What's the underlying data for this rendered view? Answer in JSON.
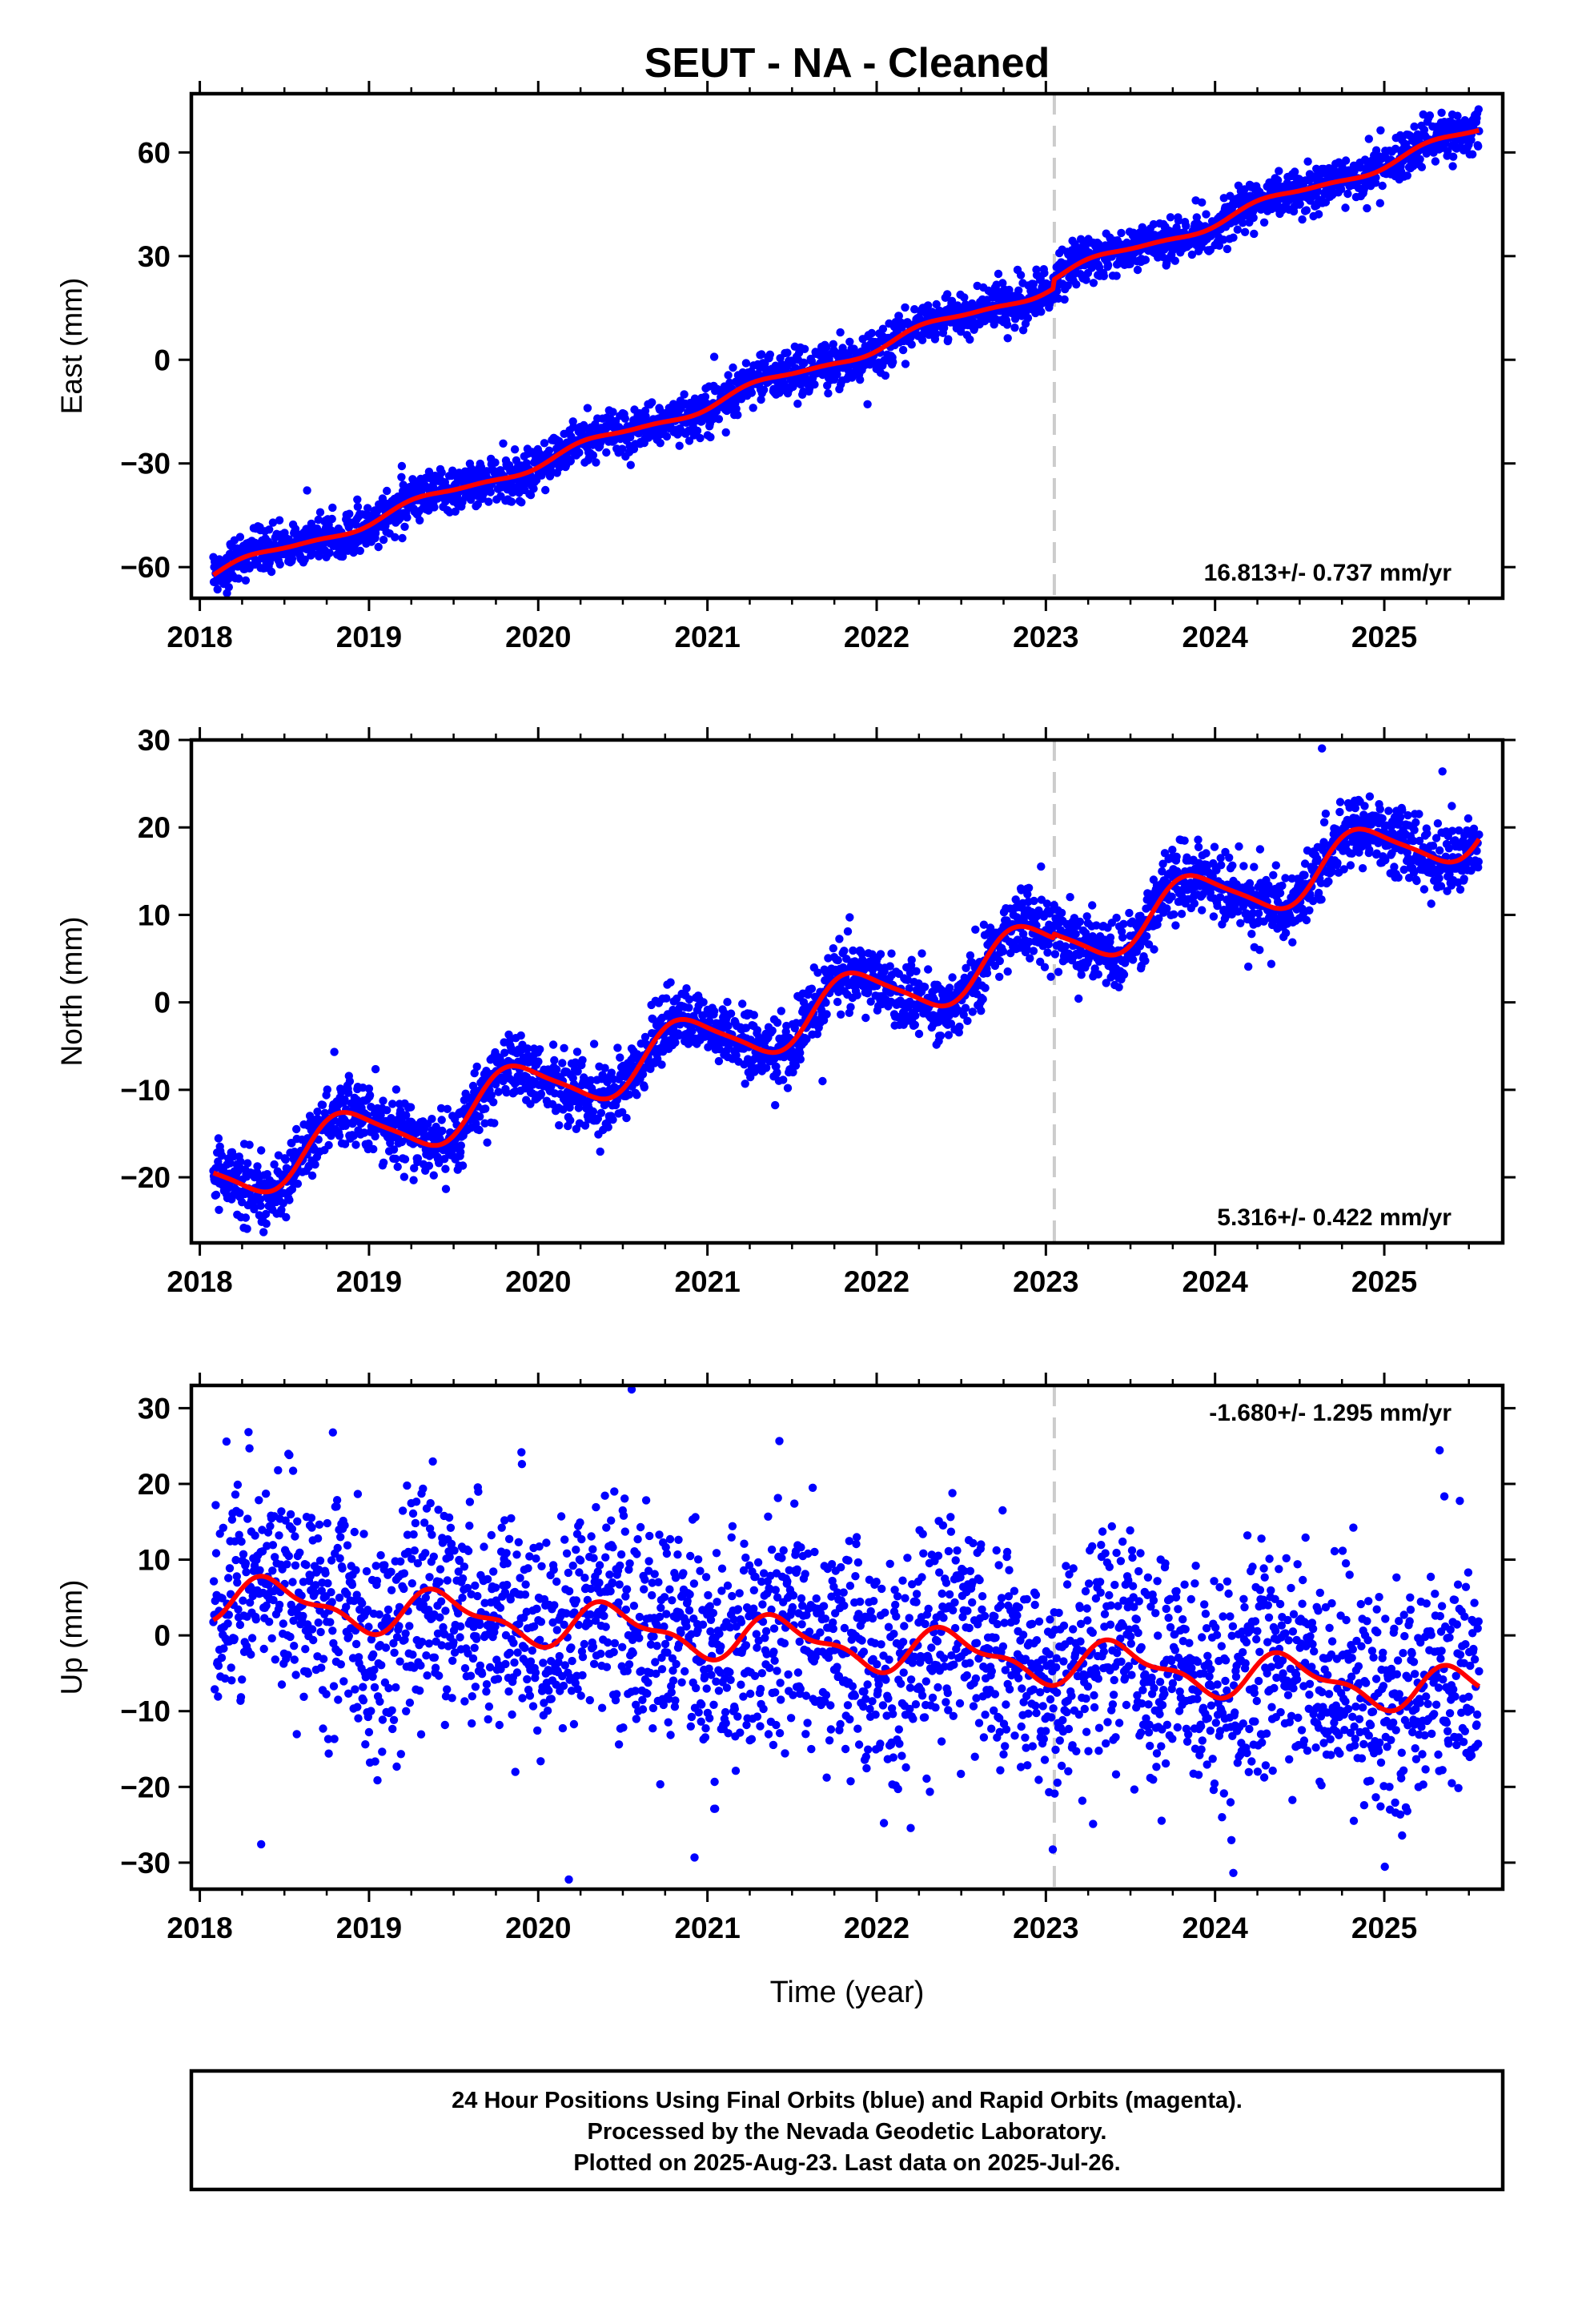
{
  "title": "SEUT  - NA - Cleaned",
  "colors": {
    "final_orbits": "#0000ff",
    "model_fit": "#ff0000",
    "reference_line": "#cccccc",
    "axes": "#000000"
  },
  "chart_data": [
    {
      "type": "scatter",
      "component": "east",
      "ylabel": "East (mm)",
      "xlabel": "",
      "xlim": [
        2017.95,
        2025.7
      ],
      "ylim": [
        -69,
        77
      ],
      "yticks": [
        -60,
        -30,
        0,
        30,
        60
      ],
      "xticks": [
        2018,
        2019,
        2020,
        2021,
        2022,
        2023,
        2024,
        2025
      ],
      "rate_text": "16.813+/- 0.737 mm/yr",
      "rate_position": "bottom-right",
      "reference_epoch": 2023.05,
      "trend": {
        "t0": 2018.08,
        "y0": -62.0,
        "rate": 16.813,
        "annual_amp": 1.6,
        "annual_phase": 0.1,
        "semiannual_amp": 0.5,
        "offsets": [
          [
            2023.05,
            2.5
          ]
        ]
      },
      "scatter_sigma": 3.2,
      "series": [
        {
          "name": "24 Hour Positions Using Final Orbits",
          "style": "scatter",
          "color": "#0000ff"
        },
        {
          "name": "model fit",
          "style": "line",
          "color": "#ff0000"
        }
      ]
    },
    {
      "type": "scatter",
      "component": "north",
      "ylabel": "North (mm)",
      "xlabel": "",
      "xlim": [
        2017.95,
        2025.7
      ],
      "ylim": [
        -27.5,
        30
      ],
      "yticks": [
        -20,
        -10,
        0,
        10,
        20,
        30
      ],
      "xticks": [
        2018,
        2019,
        2020,
        2021,
        2022,
        2023,
        2024,
        2025
      ],
      "rate_text": "5.316+/- 0.422 mm/yr",
      "rate_position": "bottom-right",
      "reference_epoch": 2023.05,
      "trend": {
        "t0": 2018.08,
        "y0": -20.0,
        "rate": 5.316,
        "annual_amp": 3.2,
        "annual_phase": 0.62,
        "semiannual_amp": 0.6,
        "offsets": [
          [
            2023.05,
            0.5
          ]
        ]
      },
      "scatter_sigma": 2.0,
      "series": [
        {
          "name": "24 Hour Positions Using Final Orbits",
          "style": "scatter",
          "color": "#0000ff"
        },
        {
          "name": "model fit",
          "style": "line",
          "color": "#ff0000"
        }
      ]
    },
    {
      "type": "scatter",
      "component": "up",
      "ylabel": "Up (mm)",
      "xlabel": "Time (year)",
      "xlim": [
        2017.95,
        2025.7
      ],
      "ylim": [
        -33.5,
        33
      ],
      "yticks": [
        -30,
        -20,
        -10,
        0,
        10,
        20,
        30
      ],
      "xticks": [
        2018,
        2019,
        2020,
        2021,
        2022,
        2023,
        2024,
        2025
      ],
      "rate_text": "-1.680+/- 1.295 mm/yr",
      "rate_position": "top-right",
      "reference_epoch": 2023.05,
      "trend": {
        "t0": 2018.08,
        "y0": 5.0,
        "rate": -1.68,
        "annual_amp": 2.6,
        "annual_phase": 0.2,
        "semiannual_amp": 1.2,
        "offsets": []
      },
      "scatter_sigma": 7.5,
      "series": [
        {
          "name": "24 Hour Positions Using Final Orbits",
          "style": "scatter",
          "color": "#0000ff"
        },
        {
          "name": "model fit",
          "style": "line",
          "color": "#ff0000"
        }
      ]
    }
  ],
  "footer": {
    "line1": "24 Hour Positions Using Final Orbits (blue) and Rapid Orbits (magenta).",
    "line2": "Processed by the Nevada Geodetic Laboratory.",
    "line3": "Plotted on 2025-Aug-23. Last data on 2025-Jul-26."
  }
}
